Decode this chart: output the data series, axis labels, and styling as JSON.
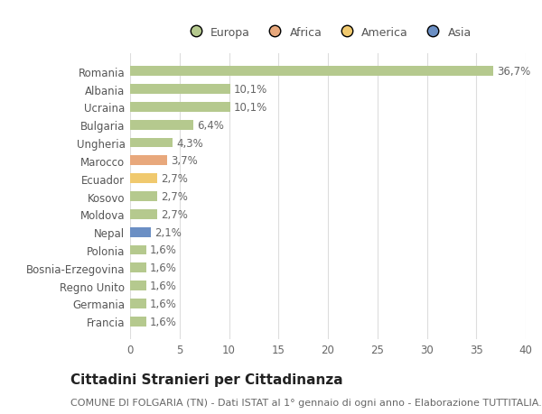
{
  "title": "Cittadini Stranieri per Cittadinanza",
  "subtitle": "COMUNE DI FOLGARIA (TN) - Dati ISTAT al 1° gennaio di ogni anno - Elaborazione TUTTITALIA.IT",
  "categories": [
    "Romania",
    "Albania",
    "Ucraina",
    "Bulgaria",
    "Ungheria",
    "Marocco",
    "Ecuador",
    "Kosovo",
    "Moldova",
    "Nepal",
    "Polonia",
    "Bosnia-Erzegovina",
    "Regno Unito",
    "Germania",
    "Francia"
  ],
  "values": [
    36.7,
    10.1,
    10.1,
    6.4,
    4.3,
    3.7,
    2.7,
    2.7,
    2.7,
    2.1,
    1.6,
    1.6,
    1.6,
    1.6,
    1.6
  ],
  "labels": [
    "36,7%",
    "10,1%",
    "10,1%",
    "6,4%",
    "4,3%",
    "3,7%",
    "2,7%",
    "2,7%",
    "2,7%",
    "2,1%",
    "1,6%",
    "1,6%",
    "1,6%",
    "1,6%",
    "1,6%"
  ],
  "colors": [
    "#b5c98e",
    "#b5c98e",
    "#b5c98e",
    "#b5c98e",
    "#b5c98e",
    "#e8a87c",
    "#f0c96e",
    "#b5c98e",
    "#b5c98e",
    "#6b8fc4",
    "#b5c98e",
    "#b5c98e",
    "#b5c98e",
    "#b5c98e",
    "#b5c98e"
  ],
  "legend_labels": [
    "Europa",
    "Africa",
    "America",
    "Asia"
  ],
  "legend_colors": [
    "#b5c98e",
    "#e8a87c",
    "#f0c96e",
    "#6b8fc4"
  ],
  "xlim": [
    0,
    40
  ],
  "xticks": [
    0,
    5,
    10,
    15,
    20,
    25,
    30,
    35,
    40
  ],
  "background_color": "#ffffff",
  "grid_color": "#dddddd",
  "bar_height": 0.55,
  "title_fontsize": 11,
  "subtitle_fontsize": 8,
  "tick_fontsize": 8.5,
  "label_fontsize": 8.5
}
